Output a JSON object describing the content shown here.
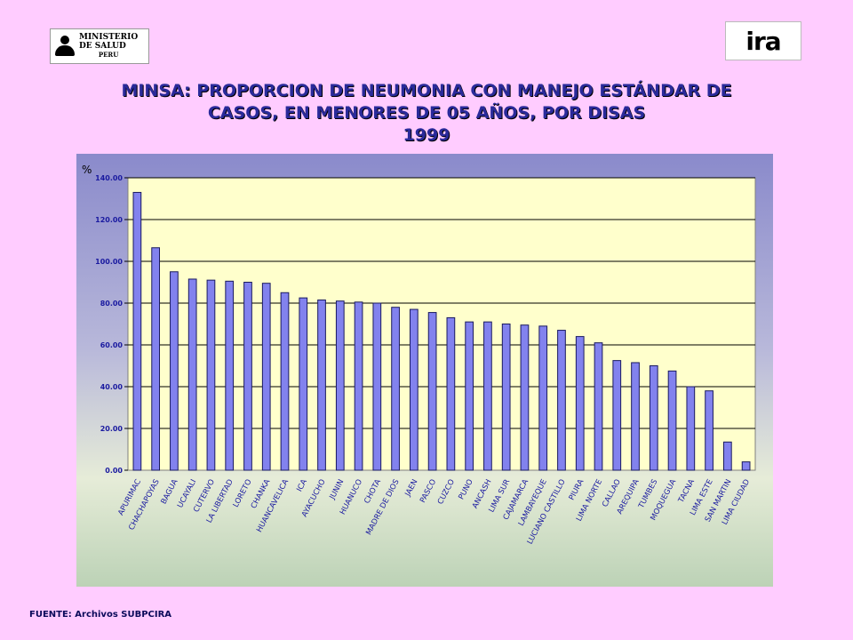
{
  "logos": {
    "left_line1": "MINISTERIO",
    "left_line2": "DE SALUD",
    "left_line3": "PERU",
    "right_text": "ira"
  },
  "title": {
    "line1": "MINSA: PROPORCION DE  NEUMONIA CON MANEJO ESTÁNDAR DE",
    "line2": "CASOS, EN MENORES DE  05 AÑOS,  POR DISAS",
    "line3": "1999"
  },
  "source": "FUENTE: Archivos SUBPCIRA",
  "colors": {
    "bar_fill": "#8282ee",
    "bar_stroke": "#1a1a60",
    "plot_bg": "#ffffcc",
    "tick_label": "#1a1aa0"
  },
  "chart_data": {
    "type": "bar",
    "ylabel": "%",
    "ylim": [
      0,
      140
    ],
    "yticks": [
      "0.00",
      "20.00",
      "40.00",
      "60.00",
      "80.00",
      "100.00",
      "120.00",
      "140.00"
    ],
    "grid": true,
    "categories": [
      "APURIMAC",
      "CHACHAPOYAS",
      "BAGUA",
      "UCAYALI",
      "CUTERVO",
      "LA LIBERTAD",
      "LORETO",
      "CHANKA",
      "HUANCAVELICA",
      "ICA",
      "AYACUCHO",
      "JUNIN",
      "HUANUCO",
      "CHOTA",
      "MADRE DE DIOS",
      "JAEN",
      "PASCO",
      "CUZCO",
      "PUNO",
      "ANCASH",
      "LIMA SUR",
      "CAJAMARCA",
      "LAMBAYEQUE",
      "LUCIANO CASTILLO",
      "PIURA",
      "LIMA NORTE",
      "CALLAO",
      "AREQUIPA",
      "TUMBES",
      "MOQUEGUA",
      "TACNA",
      "LIMA ESTE",
      "SAN MARTIN",
      "LIMA CIUDAD"
    ],
    "values": [
      133,
      106.5,
      95,
      91.5,
      91,
      90.5,
      90,
      89.5,
      85,
      82.5,
      81.5,
      81,
      80.5,
      80,
      78,
      77,
      75.5,
      73,
      71,
      71,
      70,
      69.5,
      69,
      67,
      64,
      61,
      52.5,
      51.5,
      50,
      47.5,
      40,
      38,
      13.5,
      4
    ]
  }
}
